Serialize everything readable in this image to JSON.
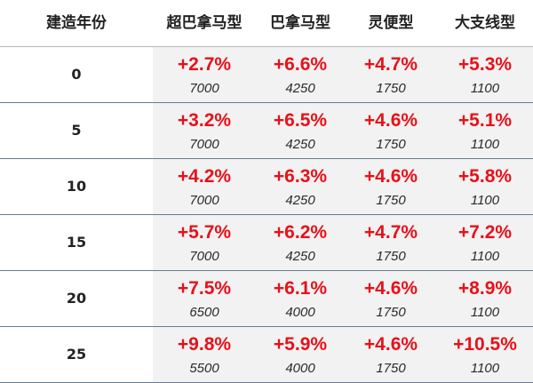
{
  "headers": [
    "建造年份",
    "超巴拿马型",
    "巴拿马型",
    "灵便型",
    "大支线型"
  ],
  "colors": {
    "change": "#e8101a",
    "value": "#2a2a2a",
    "divider": "#6a7a8c",
    "shade": "#f2f2f2"
  },
  "rows": [
    {
      "year": "0",
      "cells": [
        {
          "pct": "+2.7%",
          "val": "7000"
        },
        {
          "pct": "+6.6%",
          "val": "4250"
        },
        {
          "pct": "+4.7%",
          "val": "1750"
        },
        {
          "pct": "+5.3%",
          "val": "1100"
        }
      ]
    },
    {
      "year": "5",
      "cells": [
        {
          "pct": "+3.2%",
          "val": "7000"
        },
        {
          "pct": "+6.5%",
          "val": "4250"
        },
        {
          "pct": "+4.6%",
          "val": "1750"
        },
        {
          "pct": "+5.1%",
          "val": "1100"
        }
      ]
    },
    {
      "year": "10",
      "cells": [
        {
          "pct": "+4.2%",
          "val": "7000"
        },
        {
          "pct": "+6.3%",
          "val": "4250"
        },
        {
          "pct": "+4.6%",
          "val": "1750"
        },
        {
          "pct": "+5.8%",
          "val": "1100"
        }
      ]
    },
    {
      "year": "15",
      "cells": [
        {
          "pct": "+5.7%",
          "val": "7000"
        },
        {
          "pct": "+6.2%",
          "val": "4250"
        },
        {
          "pct": "+4.7%",
          "val": "1750"
        },
        {
          "pct": "+7.2%",
          "val": "1100"
        }
      ]
    },
    {
      "year": "20",
      "cells": [
        {
          "pct": "+7.5%",
          "val": "6500"
        },
        {
          "pct": "+6.1%",
          "val": "4000"
        },
        {
          "pct": "+4.6%",
          "val": "1750"
        },
        {
          "pct": "+8.9%",
          "val": "1100"
        }
      ]
    },
    {
      "year": "25",
      "cells": [
        {
          "pct": "+9.8%",
          "val": "5500"
        },
        {
          "pct": "+5.9%",
          "val": "4000"
        },
        {
          "pct": "+4.6%",
          "val": "1750"
        },
        {
          "pct": "+10.5%",
          "val": "1100"
        }
      ]
    }
  ]
}
